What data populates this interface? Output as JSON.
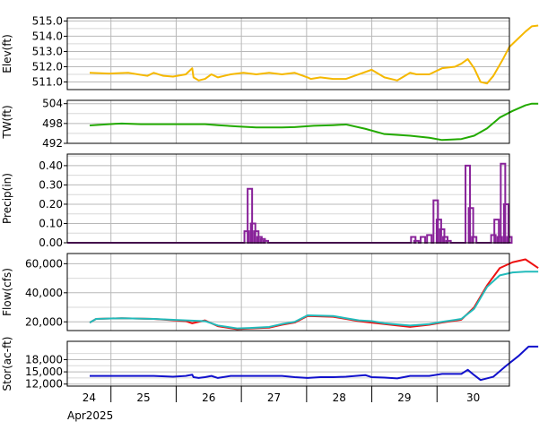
{
  "chart_data": [
    {
      "type": "line",
      "ylabel": "Elev(ft)",
      "ylim": [
        510.5,
        515.2
      ],
      "yticks": [
        511.0,
        512.0,
        513.0,
        514.0,
        515.0
      ],
      "ytick_labels": [
        "511.0",
        "512.0",
        "513.0",
        "514.0",
        "515.0"
      ],
      "grid": true,
      "series": [
        {
          "color": "#f5b800",
          "x": [
            0,
            0.3,
            0.6,
            0.9,
            1.0,
            1.15,
            1.3,
            1.5,
            1.6,
            1.62,
            1.7,
            1.8,
            1.9,
            2.0,
            2.1,
            2.2,
            2.4,
            2.6,
            2.8,
            3.0,
            3.2,
            3.4,
            3.45,
            3.6,
            3.8,
            4.0,
            4.2,
            4.4,
            4.6,
            4.8,
            5.0,
            5.1,
            5.3,
            5.5,
            5.7,
            5.8,
            5.9,
            6.0,
            6.1,
            6.2,
            6.3,
            6.45,
            6.55,
            6.7,
            6.8,
            6.9,
            7.0
          ],
          "y": [
            511.6,
            511.55,
            511.6,
            511.4,
            511.6,
            511.4,
            511.35,
            511.5,
            511.9,
            511.3,
            511.1,
            511.2,
            511.5,
            511.3,
            511.4,
            511.5,
            511.6,
            511.5,
            511.6,
            511.5,
            511.6,
            511.3,
            511.2,
            511.3,
            511.2,
            511.2,
            511.5,
            511.8,
            511.3,
            511.1,
            511.6,
            511.5,
            511.5,
            511.9,
            512.0,
            512.2,
            512.5,
            511.9,
            511.0,
            510.9,
            511.4,
            512.5,
            513.3,
            513.9,
            514.3,
            514.65,
            514.7
          ]
        }
      ]
    },
    {
      "type": "line",
      "ylabel": "TW(ft)",
      "ylim": [
        492,
        505
      ],
      "yticks": [
        492,
        498,
        504
      ],
      "ytick_labels": [
        "492",
        "498",
        "504"
      ],
      "grid": true,
      "series": [
        {
          "color": "#22aa00",
          "x": [
            0,
            0.3,
            0.5,
            0.8,
            1.0,
            1.5,
            1.8,
            2.0,
            2.3,
            2.6,
            3.0,
            3.2,
            3.5,
            3.8,
            4.0,
            4.3,
            4.6,
            5.0,
            5.3,
            5.5,
            5.8,
            6.0,
            6.2,
            6.4,
            6.6,
            6.8,
            6.9,
            7.0
          ],
          "y": [
            497.4,
            497.8,
            498.0,
            497.8,
            497.8,
            497.8,
            497.8,
            497.5,
            497.1,
            496.8,
            496.8,
            496.9,
            497.3,
            497.5,
            497.7,
            496.4,
            494.8,
            494.3,
            493.7,
            493.0,
            493.3,
            494.3,
            496.5,
            499.8,
            501.8,
            503.5,
            504.0,
            504.0
          ]
        }
      ]
    },
    {
      "type": "bar",
      "ylabel": "Precip(in)",
      "ylim": [
        0,
        0.46
      ],
      "yticks": [
        0.0,
        0.1,
        0.2,
        0.3,
        0.4
      ],
      "ytick_labels": [
        "0.00",
        "0.10",
        "0.20",
        "0.30",
        "0.40"
      ],
      "grid": true,
      "series": [
        {
          "color": "#882299",
          "x": [
            2.45,
            2.5,
            2.55,
            2.6,
            2.65,
            2.7,
            2.75,
            5.05,
            5.1,
            5.2,
            5.3,
            5.4,
            5.45,
            5.5,
            5.55,
            5.6,
            5.9,
            5.95,
            6.0,
            6.3,
            6.35,
            6.4,
            6.45,
            6.5,
            6.55
          ],
          "y": [
            0.06,
            0.28,
            0.1,
            0.06,
            0.03,
            0.02,
            0.01,
            0.03,
            0.01,
            0.03,
            0.04,
            0.22,
            0.12,
            0.07,
            0.03,
            0.01,
            0.4,
            0.18,
            0.03,
            0.04,
            0.12,
            0.03,
            0.41,
            0.2,
            0.03
          ]
        }
      ]
    },
    {
      "type": "line",
      "ylabel": "Flow(cfs)",
      "ylim": [
        14000,
        67000
      ],
      "yticks": [
        20000,
        40000,
        60000
      ],
      "ytick_labels": [
        "20,000",
        "40,000",
        "60,000"
      ],
      "grid": true,
      "series": [
        {
          "color": "#ee1111",
          "x": [
            0,
            0.1,
            0.5,
            1.0,
            1.5,
            1.6,
            1.8,
            2.0,
            2.3,
            2.5,
            2.8,
            3.0,
            3.2,
            3.4,
            3.8,
            4.0,
            4.2,
            4.4,
            4.6,
            5.0,
            5.3,
            5.5,
            5.8,
            6.0,
            6.2,
            6.4,
            6.6,
            6.8,
            7.0
          ],
          "y": [
            19500,
            22000,
            22500,
            22000,
            20500,
            19000,
            21000,
            17000,
            15000,
            15500,
            16000,
            18000,
            19500,
            24000,
            23500,
            22000,
            20500,
            19500,
            18500,
            16500,
            18000,
            19500,
            21500,
            30000,
            45000,
            57000,
            61000,
            63000,
            57000
          ]
        },
        {
          "color": "#22bbbb",
          "x": [
            0,
            0.1,
            0.5,
            1.0,
            1.5,
            1.8,
            2.0,
            2.3,
            2.5,
            2.8,
            3.0,
            3.2,
            3.4,
            3.8,
            4.0,
            4.2,
            4.4,
            4.6,
            5.0,
            5.3,
            5.5,
            5.8,
            6.0,
            6.2,
            6.4,
            6.6,
            6.8,
            7.0
          ],
          "y": [
            19500,
            22000,
            22500,
            22000,
            21000,
            20500,
            17500,
            15500,
            15800,
            16500,
            18500,
            20000,
            24500,
            24000,
            22500,
            21000,
            20500,
            19000,
            17500,
            18500,
            20000,
            22000,
            29000,
            44000,
            52000,
            54000,
            54500,
            54500
          ]
        }
      ]
    },
    {
      "type": "line",
      "ylabel": "Stor(ac-ft)",
      "ylim": [
        11500,
        22500
      ],
      "yticks": [
        12000,
        15000,
        18000
      ],
      "ytick_labels": [
        "12,000",
        "15,000",
        "18,000"
      ],
      "grid": true,
      "series": [
        {
          "color": "#1111cc",
          "x": [
            0,
            0.3,
            0.6,
            0.9,
            1.0,
            1.3,
            1.5,
            1.6,
            1.62,
            1.7,
            1.8,
            1.9,
            2.0,
            2.2,
            2.5,
            2.8,
            3.0,
            3.2,
            3.4,
            3.6,
            3.8,
            4.0,
            4.3,
            4.4,
            4.6,
            4.8,
            5.0,
            5.3,
            5.5,
            5.8,
            5.9,
            6.0,
            6.1,
            6.3,
            6.5,
            6.7,
            6.85,
            7.0
          ],
          "y": [
            14000,
            14000,
            14000,
            14000,
            14000,
            13800,
            14000,
            14300,
            13700,
            13500,
            13700,
            14000,
            13500,
            14000,
            14000,
            14000,
            14000,
            13700,
            13500,
            13700,
            13700,
            13800,
            14200,
            13700,
            13600,
            13400,
            14000,
            14000,
            14500,
            14500,
            15500,
            14200,
            13000,
            13800,
            16500,
            19000,
            21200,
            21200
          ]
        }
      ]
    }
  ],
  "x_axis": {
    "tick_labels": [
      "24",
      "25",
      "26",
      "27",
      "28",
      "29",
      "30"
    ],
    "sublabel": "Apr2025"
  }
}
